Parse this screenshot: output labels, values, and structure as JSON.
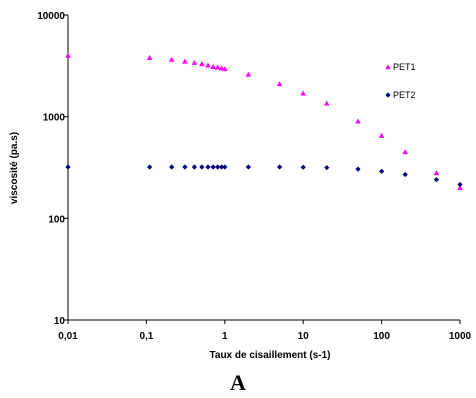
{
  "chart_data": {
    "type": "scatter",
    "title": "",
    "xlabel": "Taux de cisaillement (s-1)",
    "ylabel": "viscosité (pa.s)",
    "xscale": "log",
    "yscale": "log",
    "xlim": [
      0.01,
      1000
    ],
    "ylim": [
      10,
      10000
    ],
    "x_tick_labels": [
      "0,01",
      "0,1",
      "1",
      "10",
      "100",
      "1000"
    ],
    "y_tick_labels": [
      "10",
      "100",
      "1000",
      "10000"
    ],
    "grid": false,
    "legend_position": "right",
    "series": [
      {
        "name": "PET1",
        "marker": "triangle",
        "color": "#ff00ff",
        "x": [
          0.01,
          0.11,
          0.21,
          0.31,
          0.41,
          0.51,
          0.61,
          0.71,
          0.81,
          0.91,
          1,
          2,
          5,
          10,
          20,
          50,
          100,
          200,
          500,
          1000
        ],
        "y": [
          4000,
          3800,
          3650,
          3500,
          3400,
          3300,
          3200,
          3100,
          3050,
          3000,
          2950,
          2600,
          2100,
          1700,
          1350,
          900,
          650,
          450,
          280,
          200
        ]
      },
      {
        "name": "PET2",
        "marker": "diamond",
        "color": "#00007f",
        "x": [
          0.01,
          0.11,
          0.21,
          0.31,
          0.41,
          0.51,
          0.61,
          0.71,
          0.81,
          0.91,
          1,
          2,
          5,
          10,
          20,
          50,
          100,
          200,
          500,
          1000
        ],
        "y": [
          320,
          320,
          320,
          320,
          320,
          320,
          320,
          320,
          320,
          320,
          320,
          320,
          320,
          318,
          315,
          305,
          290,
          270,
          240,
          215
        ]
      }
    ]
  },
  "panel_label": "A"
}
